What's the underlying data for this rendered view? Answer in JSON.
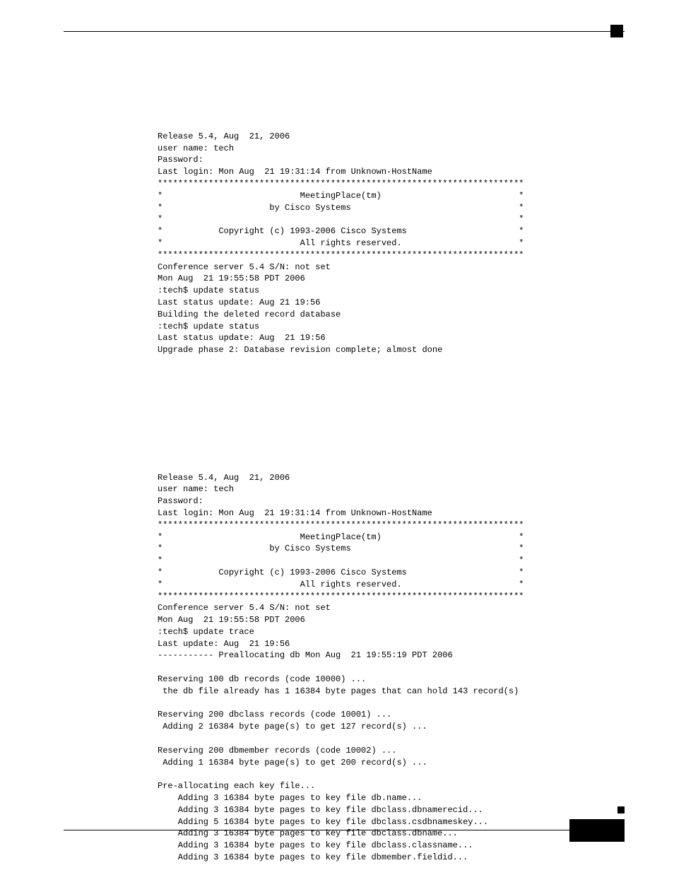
{
  "block1": {
    "l0": "Release 5.4, Aug  21, 2006",
    "l1": "user name: tech",
    "l2": "Password:",
    "l3": "Last login: Mon Aug  21 19:31:14 from Unknown-HostName",
    "l4": "************************************************************************",
    "l5": "*                           MeetingPlace(tm)                           *",
    "l6": "*                     by Cisco Systems                                 *",
    "l7": "*                                                                      *",
    "l8": "*           Copyright (c) 1993-2006 Cisco Systems                      *",
    "l9": "*                           All rights reserved.                       *",
    "l10": "************************************************************************",
    "l11": "Conference server 5.4 S/N: not set",
    "l12": "Mon Aug  21 19:55:58 PDT 2006",
    "l13": ":tech$ update status",
    "l14": "Last status update: Aug 21 19:56",
    "l15": "Building the deleted record database",
    "l16": ":tech$ update status",
    "l17": "Last status update: Aug  21 19:56",
    "l18": "Upgrade phase 2: Database revision complete; almost done"
  },
  "block2": {
    "l0": "Release 5.4, Aug  21, 2006",
    "l1": "user name: tech",
    "l2": "Password:",
    "l3": "Last login: Mon Aug  21 19:31:14 from Unknown-HostName",
    "l4": "************************************************************************",
    "l5": "*                           MeetingPlace(tm)                           *",
    "l6": "*                     by Cisco Systems                                 *",
    "l7": "*                                                                      *",
    "l8": "*           Copyright (c) 1993-2006 Cisco Systems                      *",
    "l9": "*                           All rights reserved.                       *",
    "l10": "************************************************************************",
    "l11": "Conference server 5.4 S/N: not set",
    "l12": "Mon Aug  21 19:55:58 PDT 2006",
    "l13": ":tech$ update trace",
    "l14": "Last update: Aug  21 19:56",
    "l15": "----------- Preallocating db Mon Aug  21 19:55:19 PDT 2006",
    "l16": "",
    "l17": "Reserving 100 db records (code 10000) ...",
    "l18": " the db file already has 1 16384 byte pages that can hold 143 record(s)",
    "l19": "",
    "l20": "Reserving 200 dbclass records (code 10001) ...",
    "l21": " Adding 2 16384 byte page(s) to get 127 record(s) ...",
    "l22": "",
    "l23": "Reserving 200 dbmember records (code 10002) ...",
    "l24": " Adding 1 16384 byte page(s) to get 200 record(s) ...",
    "l25": "",
    "l26": "Pre-allocating each key file...",
    "l27": "    Adding 3 16384 byte pages to key file db.name...",
    "l28": "    Adding 3 16384 byte pages to key file dbclass.dbnamerecid...",
    "l29": "    Adding 5 16384 byte pages to key file dbclass.csdbnameskey...",
    "l30": "    Adding 3 16384 byte pages to key file dbclass.dbname...",
    "l31": "    Adding 3 16384 byte pages to key file dbclass.classname...",
    "l32": "    Adding 3 16384 byte pages to key file dbmember.fieldid..."
  }
}
